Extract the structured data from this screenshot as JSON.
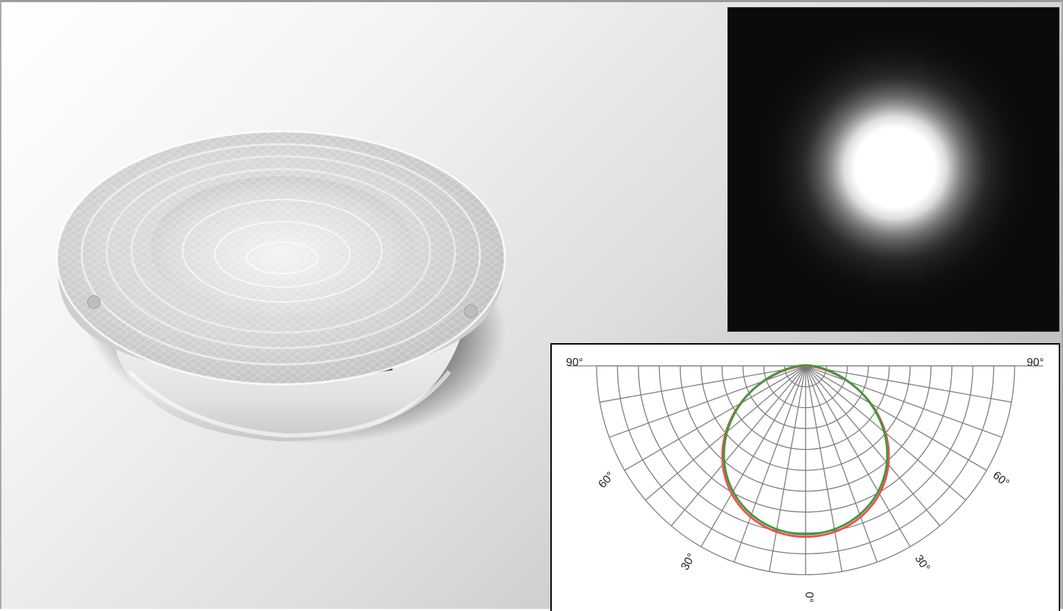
{
  "polar_diagram": {
    "angle_labels": {
      "top_left": "90°",
      "top_right": "90°",
      "mid_left": "60°",
      "mid_right": "60°",
      "low_left": "30°",
      "low_right": "30°",
      "bottom": "0°"
    },
    "curve_colors": {
      "c0_plane": "#f05050",
      "c90_plane": "#3f9a3f"
    },
    "grid_color": "#7a7a7a"
  },
  "product_image": {
    "name": "clear-reflector-lens"
  },
  "beam_image": {
    "name": "beam-spot-projection"
  }
}
